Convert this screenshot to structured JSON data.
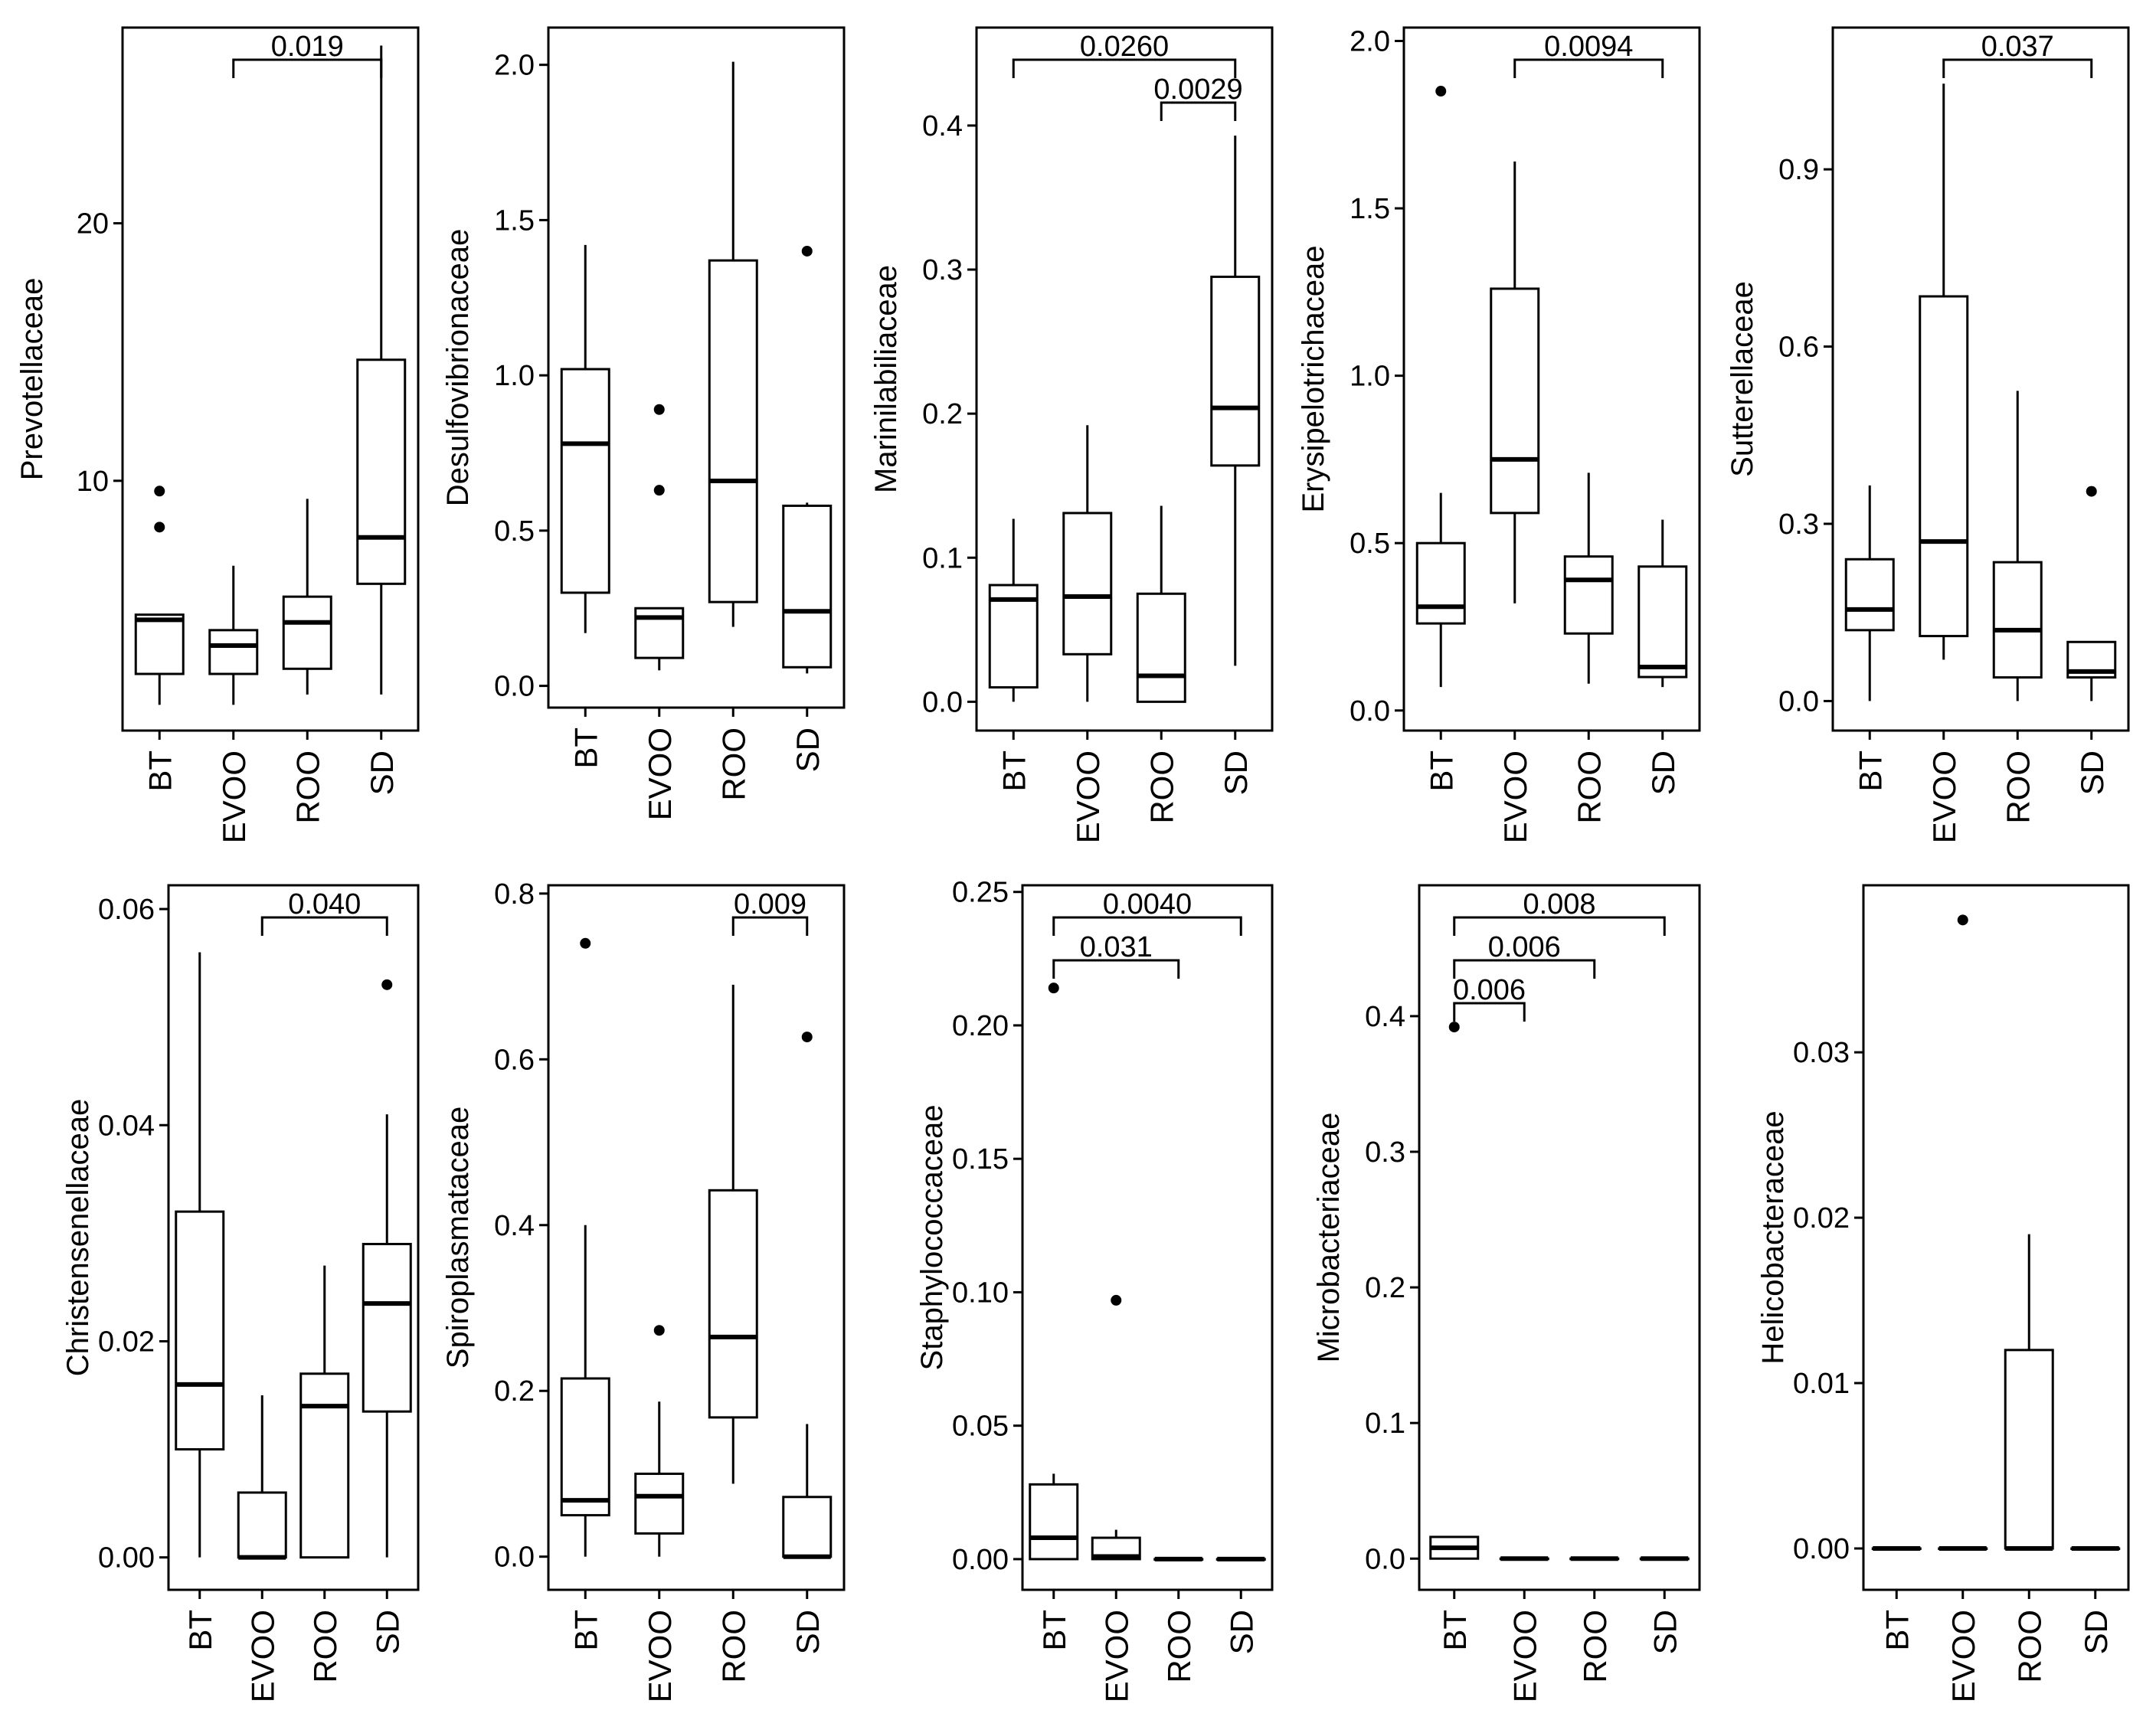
{
  "chart_data": [
    {
      "type": "box",
      "ylabel": "Prevotellaceae",
      "categories": [
        "BT",
        "EVOO",
        "ROO",
        "SD"
      ],
      "ylim": [
        0.3,
        27.6
      ],
      "yticks": [
        10,
        20
      ],
      "ytick_labels": [
        "10",
        "20"
      ],
      "boxes": [
        {
          "whisker_low": 1.3,
          "q1": 2.5,
          "median": 4.6,
          "q3": 4.8,
          "whisker_high": 4.8,
          "outliers": [
            9.6,
            8.2
          ]
        },
        {
          "whisker_low": 1.3,
          "q1": 2.5,
          "median": 3.6,
          "q3": 4.2,
          "whisker_high": 6.7,
          "outliers": []
        },
        {
          "whisker_low": 1.7,
          "q1": 2.7,
          "median": 4.5,
          "q3": 5.5,
          "whisker_high": 9.3,
          "outliers": []
        },
        {
          "whisker_low": 1.7,
          "q1": 6.0,
          "median": 7.8,
          "q3": 14.7,
          "whisker_high": 26.9,
          "outliers": []
        }
      ],
      "significance": [
        {
          "from": "EVOO",
          "to": "SD",
          "label": "0.019",
          "level": 0
        }
      ]
    },
    {
      "type": "box",
      "ylabel": "Desulfovibrionaceae",
      "categories": [
        "BT",
        "EVOO",
        "ROO",
        "SD"
      ],
      "ylim": [
        -0.07,
        2.12
      ],
      "yticks": [
        0.0,
        0.5,
        1.0,
        1.5,
        2.0
      ],
      "ytick_labels": [
        "0.0",
        "0.5",
        "1.0",
        "1.5",
        "2.0"
      ],
      "boxes": [
        {
          "whisker_low": 0.17,
          "q1": 0.3,
          "median": 0.78,
          "q3": 1.02,
          "whisker_high": 1.42,
          "outliers": []
        },
        {
          "whisker_low": 0.05,
          "q1": 0.09,
          "median": 0.22,
          "q3": 0.25,
          "whisker_high": 0.25,
          "outliers": [
            0.89,
            0.63
          ]
        },
        {
          "whisker_low": 0.19,
          "q1": 0.27,
          "median": 0.66,
          "q3": 1.37,
          "whisker_high": 2.01,
          "outliers": []
        },
        {
          "whisker_low": 0.04,
          "q1": 0.06,
          "median": 0.24,
          "q3": 0.58,
          "whisker_high": 0.59,
          "outliers": [
            1.4
          ]
        }
      ],
      "significance": []
    },
    {
      "type": "box",
      "ylabel": "Marinilabiliaceae",
      "categories": [
        "BT",
        "EVOO",
        "ROO",
        "SD"
      ],
      "ylim": [
        -0.02,
        0.468
      ],
      "yticks": [
        0.0,
        0.1,
        0.2,
        0.3,
        0.4
      ],
      "ytick_labels": [
        "0.0",
        "0.1",
        "0.2",
        "0.3",
        "0.4"
      ],
      "boxes": [
        {
          "whisker_low": 0.0,
          "q1": 0.01,
          "median": 0.071,
          "q3": 0.081,
          "whisker_high": 0.127,
          "outliers": []
        },
        {
          "whisker_low": 0.0,
          "q1": 0.033,
          "median": 0.073,
          "q3": 0.131,
          "whisker_high": 0.192,
          "outliers": []
        },
        {
          "whisker_low": 0.0,
          "q1": 0.0,
          "median": 0.018,
          "q3": 0.075,
          "whisker_high": 0.136,
          "outliers": []
        },
        {
          "whisker_low": 0.025,
          "q1": 0.164,
          "median": 0.204,
          "q3": 0.295,
          "whisker_high": 0.393,
          "outliers": []
        }
      ],
      "significance": [
        {
          "from": "BT",
          "to": "SD",
          "label": "0.0260",
          "level": 0
        },
        {
          "from": "ROO",
          "to": "SD",
          "label": "0.0029",
          "level": 1
        }
      ]
    },
    {
      "type": "box",
      "ylabel": "Erysipelotrichaceae",
      "categories": [
        "BT",
        "EVOO",
        "ROO",
        "SD"
      ],
      "ylim": [
        -0.06,
        2.04
      ],
      "yticks": [
        0.0,
        0.5,
        1.0,
        1.5,
        2.0
      ],
      "ytick_labels": [
        "0.0",
        "0.5",
        "1.0",
        "1.5",
        "2.0"
      ],
      "boxes": [
        {
          "whisker_low": 0.07,
          "q1": 0.26,
          "median": 0.31,
          "q3": 0.5,
          "whisker_high": 0.65,
          "outliers": [
            1.85
          ]
        },
        {
          "whisker_low": 0.32,
          "q1": 0.59,
          "median": 0.75,
          "q3": 1.26,
          "whisker_high": 1.64,
          "outliers": []
        },
        {
          "whisker_low": 0.08,
          "q1": 0.23,
          "median": 0.39,
          "q3": 0.46,
          "whisker_high": 0.71,
          "outliers": []
        },
        {
          "whisker_low": 0.07,
          "q1": 0.1,
          "median": 0.13,
          "q3": 0.43,
          "whisker_high": 0.57,
          "outliers": []
        }
      ],
      "significance": [
        {
          "from": "EVOO",
          "to": "SD",
          "label": "0.0094",
          "level": 0
        }
      ]
    },
    {
      "type": "box",
      "ylabel": "Sutterellaceae",
      "categories": [
        "BT",
        "EVOO",
        "ROO",
        "SD"
      ],
      "ylim": [
        -0.05,
        1.14
      ],
      "yticks": [
        0.0,
        0.3,
        0.6,
        0.9
      ],
      "ytick_labels": [
        "0.0",
        "0.3",
        "0.6",
        "0.9"
      ],
      "boxes": [
        {
          "whisker_low": 0.0,
          "q1": 0.12,
          "median": 0.155,
          "q3": 0.24,
          "whisker_high": 0.365,
          "outliers": []
        },
        {
          "whisker_low": 0.07,
          "q1": 0.11,
          "median": 0.27,
          "q3": 0.685,
          "whisker_high": 1.045,
          "outliers": []
        },
        {
          "whisker_low": 0.0,
          "q1": 0.04,
          "median": 0.12,
          "q3": 0.235,
          "whisker_high": 0.525,
          "outliers": []
        },
        {
          "whisker_low": 0.0,
          "q1": 0.04,
          "median": 0.05,
          "q3": 0.1,
          "whisker_high": 0.1,
          "outliers": [
            0.355
          ]
        }
      ],
      "significance": [
        {
          "from": "EVOO",
          "to": "SD",
          "label": "0.037",
          "level": 0
        }
      ]
    },
    {
      "type": "box",
      "ylabel": "Christensenellaceae",
      "categories": [
        "BT",
        "EVOO",
        "ROO",
        "SD"
      ],
      "ylim": [
        -0.003,
        0.0622
      ],
      "yticks": [
        0.0,
        0.02,
        0.04,
        0.06
      ],
      "ytick_labels": [
        "0.00",
        "0.02",
        "0.04",
        "0.06"
      ],
      "boxes": [
        {
          "whisker_low": 0.0,
          "q1": 0.01,
          "median": 0.016,
          "q3": 0.032,
          "whisker_high": 0.056,
          "outliers": []
        },
        {
          "whisker_low": 0.0,
          "q1": 0.0,
          "median": 0.0,
          "q3": 0.006,
          "whisker_high": 0.015,
          "outliers": []
        },
        {
          "whisker_low": 0.0,
          "q1": 0.0,
          "median": 0.014,
          "q3": 0.017,
          "whisker_high": 0.027,
          "outliers": []
        },
        {
          "whisker_low": 0.0,
          "q1": 0.0135,
          "median": 0.0235,
          "q3": 0.029,
          "whisker_high": 0.041,
          "outliers": [
            0.053
          ]
        }
      ],
      "significance": [
        {
          "from": "EVOO",
          "to": "SD",
          "label": "0.040",
          "level": 0
        }
      ]
    },
    {
      "type": "box",
      "ylabel": "Spiroplasmataceae",
      "categories": [
        "BT",
        "EVOO",
        "ROO",
        "SD"
      ],
      "ylim": [
        -0.04,
        0.81
      ],
      "yticks": [
        0.0,
        0.2,
        0.4,
        0.6,
        0.8
      ],
      "ytick_labels": [
        "0.0",
        "0.2",
        "0.4",
        "0.6",
        "0.8"
      ],
      "boxes": [
        {
          "whisker_low": 0.0,
          "q1": 0.05,
          "median": 0.068,
          "q3": 0.215,
          "whisker_high": 0.4,
          "outliers": [
            0.74
          ]
        },
        {
          "whisker_low": 0.0,
          "q1": 0.028,
          "median": 0.073,
          "q3": 0.1,
          "whisker_high": 0.187,
          "outliers": [
            0.273
          ]
        },
        {
          "whisker_low": 0.088,
          "q1": 0.168,
          "median": 0.265,
          "q3": 0.442,
          "whisker_high": 0.69,
          "outliers": []
        },
        {
          "whisker_low": 0.0,
          "q1": 0.0,
          "median": 0.0,
          "q3": 0.072,
          "whisker_high": 0.16,
          "outliers": [
            0.627
          ]
        }
      ],
      "significance": [
        {
          "from": "ROO",
          "to": "SD",
          "label": "0.009",
          "level": 0
        }
      ]
    },
    {
      "type": "box",
      "ylabel": "Staphylococcaceae",
      "categories": [
        "BT",
        "EVOO",
        "ROO",
        "SD"
      ],
      "ylim": [
        -0.0115,
        0.2525
      ],
      "yticks": [
        0.0,
        0.05,
        0.1,
        0.15,
        0.2,
        0.25
      ],
      "ytick_labels": [
        "0.00",
        "0.05",
        "0.10",
        "0.15",
        "0.20",
        "0.25"
      ],
      "boxes": [
        {
          "whisker_low": 0.0,
          "q1": 0.0,
          "median": 0.008,
          "q3": 0.028,
          "whisker_high": 0.032,
          "outliers": [
            0.214
          ]
        },
        {
          "whisker_low": 0.0,
          "q1": 0.0,
          "median": 0.001,
          "q3": 0.008,
          "whisker_high": 0.011,
          "outliers": [
            0.097
          ]
        },
        {
          "whisker_low": 0.0,
          "q1": 0.0,
          "median": 0.0,
          "q3": 0.0,
          "whisker_high": 0.0,
          "outliers": []
        },
        {
          "whisker_low": 0.0,
          "q1": 0.0,
          "median": 0.0,
          "q3": 0.0,
          "whisker_high": 0.0,
          "outliers": []
        }
      ],
      "significance": [
        {
          "from": "BT",
          "to": "SD",
          "label": "0.0040",
          "level": 0
        },
        {
          "from": "BT",
          "to": "ROO",
          "label": "0.031",
          "level": 1
        }
      ]
    },
    {
      "type": "box",
      "ylabel": "Microbacteriaceae",
      "categories": [
        "BT",
        "EVOO",
        "ROO",
        "SD"
      ],
      "ylim": [
        -0.023,
        0.4965
      ],
      "yticks": [
        0.0,
        0.1,
        0.2,
        0.3,
        0.4
      ],
      "ytick_labels": [
        "0.0",
        "0.1",
        "0.2",
        "0.3",
        "0.4"
      ],
      "boxes": [
        {
          "whisker_low": 0.0,
          "q1": 0.0,
          "median": 0.008,
          "q3": 0.016,
          "whisker_high": 0.016,
          "outliers": [
            0.392
          ]
        },
        {
          "whisker_low": 0.0,
          "q1": 0.0,
          "median": 0.0,
          "q3": 0.0,
          "whisker_high": 0.0,
          "outliers": []
        },
        {
          "whisker_low": 0.0,
          "q1": 0.0,
          "median": 0.0,
          "q3": 0.0,
          "whisker_high": 0.0,
          "outliers": []
        },
        {
          "whisker_low": 0.0,
          "q1": 0.0,
          "median": 0.0,
          "q3": 0.0,
          "whisker_high": 0.0,
          "outliers": []
        }
      ],
      "significance": [
        {
          "from": "BT",
          "to": "SD",
          "label": "0.008",
          "level": 0
        },
        {
          "from": "BT",
          "to": "ROO",
          "label": "0.006",
          "level": 1
        },
        {
          "from": "BT",
          "to": "EVOO",
          "label": "0.006",
          "level": 2
        }
      ]
    },
    {
      "type": "box",
      "ylabel": "Helicobacteraceae",
      "categories": [
        "BT",
        "EVOO",
        "ROO",
        "SD"
      ],
      "ylim": [
        -0.0025,
        0.0401
      ],
      "yticks": [
        0.0,
        0.01,
        0.02,
        0.03
      ],
      "ytick_labels": [
        "0.00",
        "0.01",
        "0.02",
        "0.03"
      ],
      "boxes": [
        {
          "whisker_low": 0.0,
          "q1": 0.0,
          "median": 0.0,
          "q3": 0.0,
          "whisker_high": 0.0,
          "outliers": []
        },
        {
          "whisker_low": 0.0,
          "q1": 0.0,
          "median": 0.0,
          "q3": 0.0,
          "whisker_high": 0.0,
          "outliers": [
            0.038
          ]
        },
        {
          "whisker_low": 0.0,
          "q1": 0.0,
          "median": 0.0,
          "q3": 0.012,
          "whisker_high": 0.019,
          "outliers": []
        },
        {
          "whisker_low": 0.0,
          "q1": 0.0,
          "median": 0.0,
          "q3": 0.0,
          "whisker_high": 0.0,
          "outliers": []
        }
      ],
      "significance": []
    }
  ]
}
